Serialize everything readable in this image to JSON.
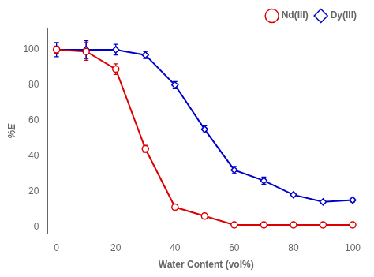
{
  "chart_data": {
    "type": "line",
    "xlabel": "Water Content (vol%)",
    "ylabel": "%E",
    "x": [
      0,
      10,
      20,
      30,
      40,
      50,
      60,
      70,
      80,
      90,
      100
    ],
    "series": [
      {
        "name": "Nd(III)",
        "color": "#dd0000",
        "marker": "circle",
        "values": [
          100,
          99,
          89,
          44,
          11,
          6,
          1,
          1,
          1,
          1,
          1
        ],
        "yerr": [
          2,
          5,
          3,
          2,
          1,
          1,
          0.5,
          0.5,
          0.5,
          0.5,
          0.5
        ]
      },
      {
        "name": "Dy(III)",
        "color": "#0000cc",
        "marker": "diamond",
        "values": [
          100,
          100,
          100,
          97,
          80,
          55,
          32,
          26,
          18,
          14,
          15
        ],
        "yerr": [
          4,
          5,
          3,
          2,
          2,
          2,
          2,
          2,
          1,
          1,
          1
        ]
      }
    ],
    "xlim": [
      -3,
      104
    ],
    "ylim": [
      -4,
      112
    ],
    "xticks": [
      0,
      20,
      40,
      60,
      80,
      100
    ],
    "yticks": [
      0,
      20,
      40,
      60,
      80,
      100
    ],
    "grid": false,
    "legend": "upper right"
  }
}
